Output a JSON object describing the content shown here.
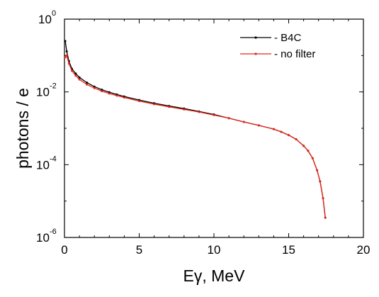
{
  "chart_data": {
    "type": "line",
    "title": "",
    "xlabel": "Eγ, MeV",
    "ylabel": "photons / e",
    "xlim": [
      0,
      20
    ],
    "ylim": [
      1e-06,
      1
    ],
    "yscale": "log",
    "x_ticks": [
      0,
      5,
      10,
      15,
      20
    ],
    "y_ticks": [
      {
        "base": "10",
        "exp": "0",
        "value": 1
      },
      {
        "base": "10",
        "exp": "-2",
        "value": 0.01
      },
      {
        "base": "10",
        "exp": "-4",
        "value": 0.0001
      },
      {
        "base": "10",
        "exp": "-6",
        "value": 1e-06
      }
    ],
    "grid": false,
    "legend_position": "top-right",
    "series": [
      {
        "name": "- B4C",
        "color": "#000000",
        "x": [
          0.05,
          0.15,
          0.3,
          0.5,
          0.75,
          1.0,
          1.5,
          2.0,
          2.5,
          3.0,
          3.5,
          4.0,
          5.0,
          6.0,
          7.0,
          8.0,
          9.0,
          10.0,
          11.0,
          12.0,
          13.0,
          14.0,
          14.5,
          15.0,
          15.5,
          16.0,
          16.3,
          16.6,
          16.9,
          17.1,
          17.3,
          17.45
        ],
        "y": [
          0.25,
          0.13,
          0.07,
          0.043,
          0.032,
          0.025,
          0.018,
          0.014,
          0.0115,
          0.0098,
          0.0085,
          0.0075,
          0.006,
          0.0049,
          0.0041,
          0.0035,
          0.0029,
          0.0024,
          0.0019,
          0.0015,
          0.0012,
          0.00095,
          0.0008,
          0.00065,
          0.0005,
          0.00033,
          0.00024,
          0.00015,
          7e-05,
          3.5e-05,
          1.2e-05,
          3.5e-06
        ]
      },
      {
        "name": "- no filter",
        "color": "#e8261c",
        "x": [
          0.05,
          0.15,
          0.3,
          0.5,
          0.75,
          1.0,
          1.5,
          2.0,
          2.5,
          3.0,
          3.5,
          4.0,
          5.0,
          6.0,
          7.0,
          8.0,
          9.0,
          10.0,
          11.0,
          12.0,
          13.0,
          14.0,
          14.5,
          15.0,
          15.5,
          16.0,
          16.3,
          16.6,
          16.9,
          17.1,
          17.3,
          17.45
        ],
        "y": [
          0.09,
          0.1,
          0.06,
          0.038,
          0.028,
          0.022,
          0.016,
          0.0127,
          0.0105,
          0.009,
          0.0079,
          0.007,
          0.0056,
          0.0046,
          0.0039,
          0.0033,
          0.0028,
          0.0023,
          0.0019,
          0.0015,
          0.0012,
          0.00095,
          0.0008,
          0.00065,
          0.0005,
          0.00033,
          0.00024,
          0.00015,
          7e-05,
          3.5e-05,
          1.2e-05,
          3.5e-06
        ]
      }
    ]
  }
}
